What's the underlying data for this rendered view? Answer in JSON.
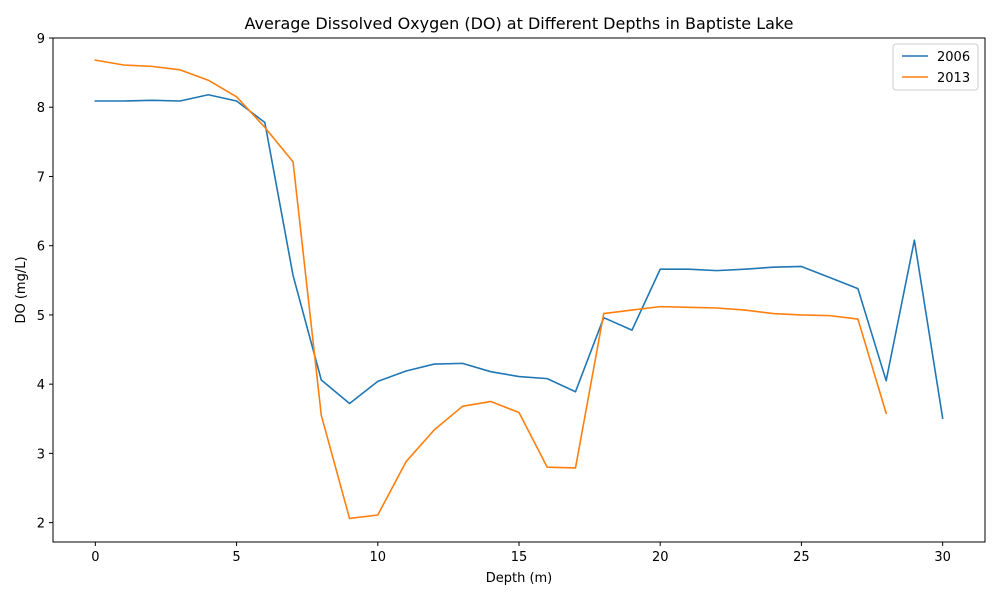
{
  "chart_data": {
    "type": "line",
    "title": "Average Dissolved Oxygen (DO) at Different Depths in Baptiste Lake",
    "xlabel": "Depth (m)",
    "ylabel": "DO (mg/L)",
    "xlim": [
      -1.5,
      31.5
    ],
    "ylim": [
      1.72,
      9.0
    ],
    "xticks": [
      0,
      5,
      10,
      15,
      20,
      25,
      30
    ],
    "yticks": [
      2,
      3,
      4,
      5,
      6,
      7,
      8,
      9
    ],
    "grid": false,
    "legend_position": "top-right",
    "series": [
      {
        "name": "2006",
        "color": "#1f77b4",
        "x": [
          0,
          1,
          2,
          3,
          4,
          5,
          6,
          7,
          8,
          9,
          10,
          11,
          12,
          13,
          14,
          15,
          16,
          17,
          18,
          19,
          20,
          21,
          22,
          23,
          24,
          25,
          26,
          27,
          28,
          29,
          30
        ],
        "y": [
          8.09,
          8.09,
          8.1,
          8.09,
          8.18,
          8.09,
          7.78,
          5.57,
          4.06,
          3.72,
          4.04,
          4.19,
          4.29,
          4.3,
          4.18,
          4.11,
          4.08,
          3.89,
          4.96,
          4.78,
          5.66,
          5.66,
          5.64,
          5.66,
          5.69,
          5.7,
          5.54,
          5.38,
          4.05,
          6.08,
          3.51
        ]
      },
      {
        "name": "2013",
        "color": "#ff7f0e",
        "x": [
          0,
          1,
          2,
          3,
          4,
          5,
          6,
          7,
          8,
          9,
          10,
          11,
          12,
          13,
          14,
          15,
          16,
          17,
          18,
          19,
          20,
          21,
          22,
          23,
          24,
          25,
          26,
          27,
          28
        ],
        "y": [
          8.68,
          8.61,
          8.59,
          8.54,
          8.39,
          8.15,
          7.71,
          7.21,
          3.55,
          2.06,
          2.11,
          2.88,
          3.34,
          3.68,
          3.75,
          3.59,
          2.8,
          2.79,
          5.02,
          5.07,
          5.12,
          5.11,
          5.1,
          5.07,
          5.02,
          5.0,
          4.99,
          4.94,
          3.58
        ]
      }
    ]
  }
}
